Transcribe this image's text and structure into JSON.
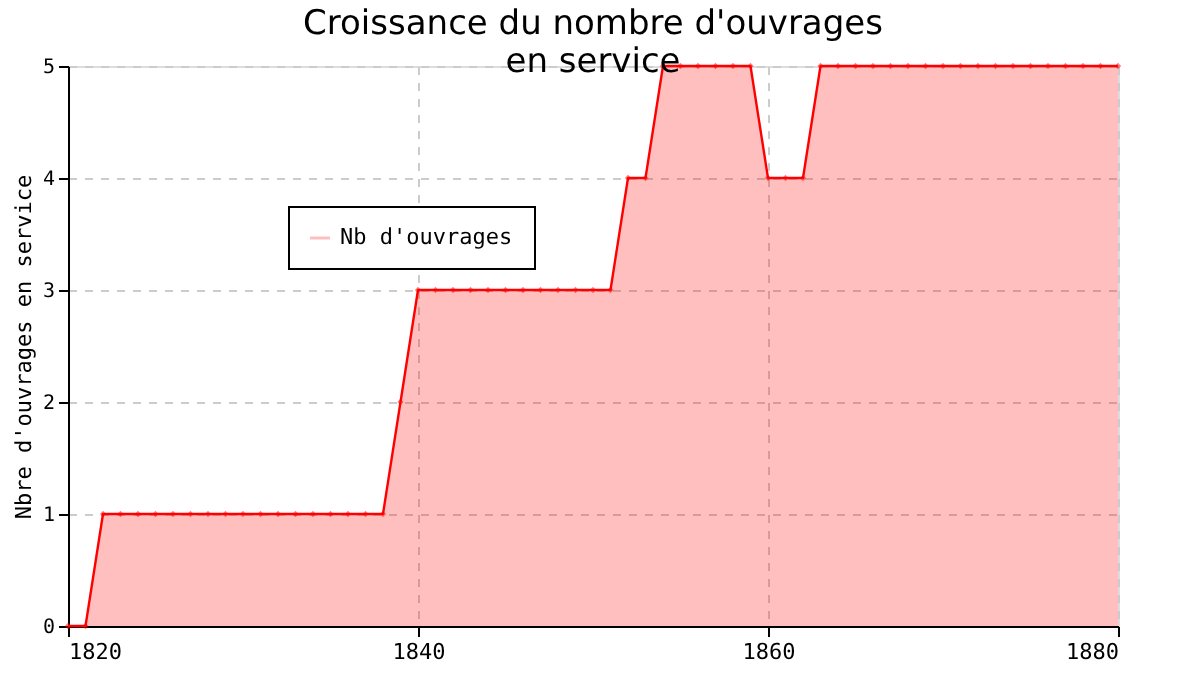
{
  "chart_data": {
    "type": "area",
    "title": "Croissance du nombre d'ouvrages\nen service",
    "ylabel": "Nbre d'ouvrages en service",
    "x": [
      1820,
      1821,
      1822,
      1823,
      1824,
      1825,
      1826,
      1827,
      1828,
      1829,
      1830,
      1831,
      1832,
      1833,
      1834,
      1835,
      1836,
      1837,
      1838,
      1839,
      1840,
      1841,
      1842,
      1843,
      1844,
      1845,
      1846,
      1847,
      1848,
      1849,
      1850,
      1851,
      1852,
      1853,
      1854,
      1855,
      1856,
      1857,
      1858,
      1859,
      1860,
      1861,
      1862,
      1863,
      1864,
      1865,
      1866,
      1867,
      1868,
      1869,
      1870,
      1871,
      1872,
      1873,
      1874,
      1875,
      1876,
      1877,
      1878,
      1879,
      1880
    ],
    "series": [
      {
        "name": "Nb d'ouvrages",
        "color": "#ff0000",
        "values": [
          0,
          0,
          1,
          1,
          1,
          1,
          1,
          1,
          1,
          1,
          1,
          1,
          1,
          1,
          1,
          1,
          1,
          1,
          1,
          2,
          3,
          3,
          3,
          3,
          3,
          3,
          3,
          3,
          3,
          3,
          3,
          3,
          4,
          4,
          5,
          5,
          5,
          5,
          5,
          5,
          4,
          4,
          4,
          5,
          5,
          5,
          5,
          5,
          5,
          5,
          5,
          5,
          5,
          5,
          5,
          5,
          5,
          5,
          5,
          5,
          5
        ]
      }
    ],
    "xlim": [
      1820,
      1880
    ],
    "xticks": [
      1820,
      1840,
      1860,
      1880
    ],
    "ylim": [
      0,
      5
    ],
    "yticks": [
      0,
      1,
      2,
      3,
      4,
      5
    ],
    "grid": true,
    "legend": "top left",
    "marker": "diamond",
    "line_style": "solid"
  }
}
